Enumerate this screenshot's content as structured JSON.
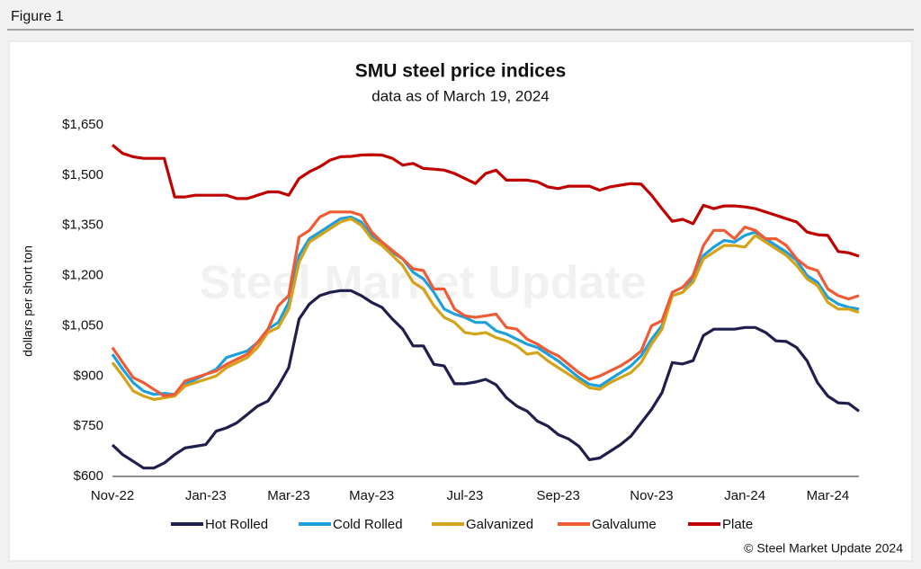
{
  "header": "Figure 1",
  "chart_data": {
    "type": "line",
    "title": "SMU steel price indices",
    "subtitle": "data as of March 19, 2024",
    "y_label": "dollars per short ton",
    "watermark": "Steel Market Update",
    "credit": "© Steel Market Update 2024",
    "categories": [
      "Nov-22",
      null,
      null,
      null,
      null,
      null,
      null,
      null,
      null,
      "Jan-23",
      null,
      null,
      null,
      null,
      null,
      null,
      null,
      "Mar-23",
      null,
      null,
      null,
      null,
      null,
      null,
      null,
      "May-23",
      null,
      null,
      null,
      null,
      null,
      null,
      null,
      null,
      "Jul-23",
      null,
      null,
      null,
      null,
      null,
      null,
      null,
      null,
      "Sep-23",
      null,
      null,
      null,
      null,
      null,
      null,
      null,
      null,
      "Nov-23",
      null,
      null,
      null,
      null,
      null,
      null,
      null,
      null,
      "Jan-24",
      null,
      null,
      null,
      null,
      null,
      null,
      null,
      "Mar-24",
      null,
      null,
      null
    ],
    "ylim": [
      600,
      1650
    ],
    "yticks": [
      {
        "value": 600,
        "label": "$600"
      },
      {
        "value": 750,
        "label": "$750"
      },
      {
        "value": 900,
        "label": "$900"
      },
      {
        "value": 1050,
        "label": "$1,050"
      },
      {
        "value": 1200,
        "label": "$1,200"
      },
      {
        "value": 1350,
        "label": "$1,350"
      },
      {
        "value": 1500,
        "label": "$1,500"
      },
      {
        "value": 1650,
        "label": "$1,650"
      }
    ],
    "grid": false,
    "legend": "bottom",
    "series": [
      {
        "name": "Hot Rolled",
        "color": "#1f1f4d",
        "values": [
          694,
          665,
          645,
          625,
          625,
          640,
          665,
          685,
          690,
          695,
          735,
          745,
          760,
          785,
          810,
          825,
          870,
          925,
          1070,
          1115,
          1140,
          1150,
          1155,
          1155,
          1140,
          1120,
          1105,
          1070,
          1040,
          990,
          990,
          935,
          930,
          877,
          877,
          882,
          890,
          874,
          835,
          810,
          795,
          765,
          750,
          725,
          712,
          690,
          650,
          655,
          675,
          695,
          720,
          760,
          800,
          850,
          940,
          936,
          946,
          1021,
          1040,
          1040,
          1040,
          1045,
          1045,
          1030,
          1005,
          1003,
          985,
          945,
          880,
          840,
          820,
          818,
          795
        ]
      },
      {
        "name": "Cold Rolled",
        "color": "#1ea0dc",
        "values": [
          965,
          920,
          880,
          855,
          845,
          848,
          845,
          875,
          890,
          905,
          920,
          955,
          965,
          975,
          1000,
          1040,
          1060,
          1120,
          1260,
          1310,
          1330,
          1350,
          1370,
          1375,
          1360,
          1320,
          1300,
          1270,
          1250,
          1210,
          1190,
          1150,
          1100,
          1085,
          1075,
          1060,
          1060,
          1035,
          1025,
          1010,
          995,
          985,
          965,
          945,
          920,
          895,
          875,
          870,
          890,
          910,
          930,
          960,
          1010,
          1050,
          1140,
          1150,
          1190,
          1260,
          1285,
          1305,
          1300,
          1320,
          1330,
          1310,
          1290,
          1270,
          1245,
          1200,
          1180,
          1135,
          1115,
          1105,
          1100
        ]
      },
      {
        "name": "Galvanized",
        "color": "#d4a31a",
        "values": [
          940,
          900,
          855,
          840,
          830,
          835,
          840,
          870,
          880,
          890,
          900,
          925,
          940,
          955,
          985,
          1030,
          1045,
          1100,
          1240,
          1300,
          1320,
          1340,
          1360,
          1370,
          1350,
          1310,
          1290,
          1260,
          1230,
          1180,
          1160,
          1110,
          1075,
          1060,
          1030,
          1025,
          1030,
          1015,
          1005,
          990,
          965,
          970,
          945,
          925,
          905,
          885,
          865,
          860,
          880,
          895,
          910,
          940,
          995,
          1040,
          1140,
          1150,
          1180,
          1250,
          1270,
          1290,
          1290,
          1285,
          1320,
          1300,
          1280,
          1260,
          1230,
          1190,
          1170,
          1120,
          1100,
          1100,
          1090
        ]
      },
      {
        "name": "Galvalume",
        "color": "#ef5b35",
        "values": [
          985,
          940,
          895,
          880,
          860,
          840,
          845,
          885,
          895,
          905,
          915,
          935,
          950,
          965,
          1000,
          1040,
          1110,
          1140,
          1315,
          1335,
          1375,
          1390,
          1390,
          1390,
          1380,
          1330,
          1300,
          1275,
          1250,
          1220,
          1215,
          1160,
          1160,
          1100,
          1080,
          1075,
          1080,
          1085,
          1045,
          1040,
          1010,
          995,
          975,
          960,
          935,
          910,
          890,
          900,
          915,
          930,
          950,
          975,
          1050,
          1065,
          1150,
          1165,
          1200,
          1290,
          1335,
          1335,
          1310,
          1345,
          1335,
          1310,
          1310,
          1290,
          1250,
          1225,
          1215,
          1160,
          1140,
          1130,
          1140
        ]
      },
      {
        "name": "Plate",
        "color": "#c00000",
        "values": [
          1590,
          1565,
          1555,
          1550,
          1550,
          1550,
          1435,
          1435,
          1440,
          1440,
          1440,
          1440,
          1430,
          1430,
          1440,
          1450,
          1450,
          1440,
          1490,
          1510,
          1525,
          1545,
          1555,
          1556,
          1560,
          1561,
          1560,
          1550,
          1530,
          1535,
          1520,
          1518,
          1515,
          1505,
          1490,
          1475,
          1505,
          1515,
          1485,
          1485,
          1485,
          1480,
          1465,
          1460,
          1467,
          1467,
          1467,
          1455,
          1465,
          1470,
          1475,
          1473,
          1440,
          1400,
          1362,
          1368,
          1355,
          1410,
          1400,
          1408,
          1408,
          1405,
          1400,
          1390,
          1380,
          1370,
          1360,
          1330,
          1322,
          1320,
          1272,
          1268,
          1258
        ]
      }
    ]
  }
}
